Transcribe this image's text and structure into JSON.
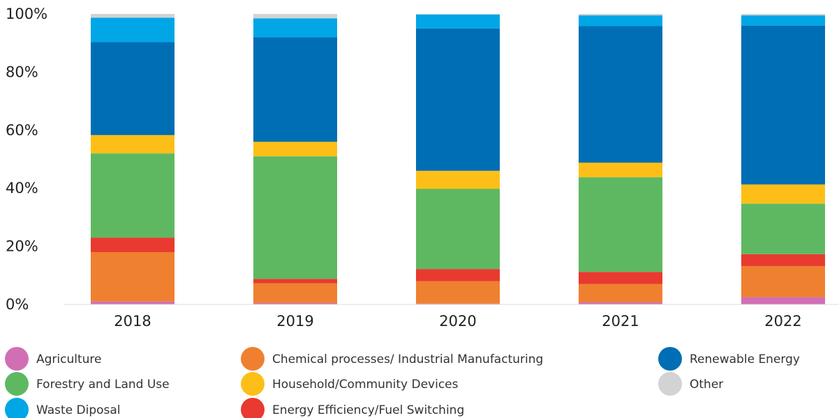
{
  "chart_data": {
    "type": "bar",
    "stacked": true,
    "categories": [
      "2018",
      "2019",
      "2020",
      "2021",
      "2022"
    ],
    "ylim": [
      0,
      100
    ],
    "yticks": [
      "0%",
      "20%",
      "40%",
      "60%",
      "80%",
      "100%"
    ],
    "grid": false,
    "legend_position": "bottom",
    "series": [
      {
        "name": "Agriculture",
        "color": "#d16fb5",
        "values": [
          1,
          0.5,
          0.3,
          0.7,
          2.5
        ]
      },
      {
        "name": "Chemical processes/ Industrial Manufacturing",
        "color": "#ef8030",
        "values": [
          17,
          6.8,
          7.7,
          6.3,
          10.7
        ]
      },
      {
        "name": "Energy Efficiency/Fuel Switching",
        "color": "#e83a2e",
        "values": [
          5,
          1.5,
          4.2,
          4.2,
          4.1
        ]
      },
      {
        "name": "Forestry and Land Use",
        "color": "#5eb862",
        "values": [
          29,
          42.2,
          27.6,
          32.6,
          17.4
        ]
      },
      {
        "name": "Household/Community Devices",
        "color": "#fdbf17",
        "values": [
          6.3,
          5,
          6.2,
          5,
          6.6
        ]
      },
      {
        "name": "Renewable Energy",
        "color": "#006eb4",
        "values": [
          32,
          36,
          49,
          47,
          54.7
        ]
      },
      {
        "name": "Waste Diposal",
        "color": "#00a6e6",
        "values": [
          8.4,
          6.5,
          4.8,
          3.7,
          3.5
        ]
      },
      {
        "name": "Other",
        "color": "#d1d3d4",
        "values": [
          1.3,
          1.5,
          0.2,
          0.5,
          0.5
        ]
      }
    ],
    "legend_order": [
      "Agriculture",
      "Forestry and Land Use",
      "Waste Diposal",
      "Chemical processes/ Industrial Manufacturing",
      "Household/Community Devices",
      "Energy Efficiency/Fuel Switching",
      "Renewable Energy",
      "Other"
    ]
  }
}
